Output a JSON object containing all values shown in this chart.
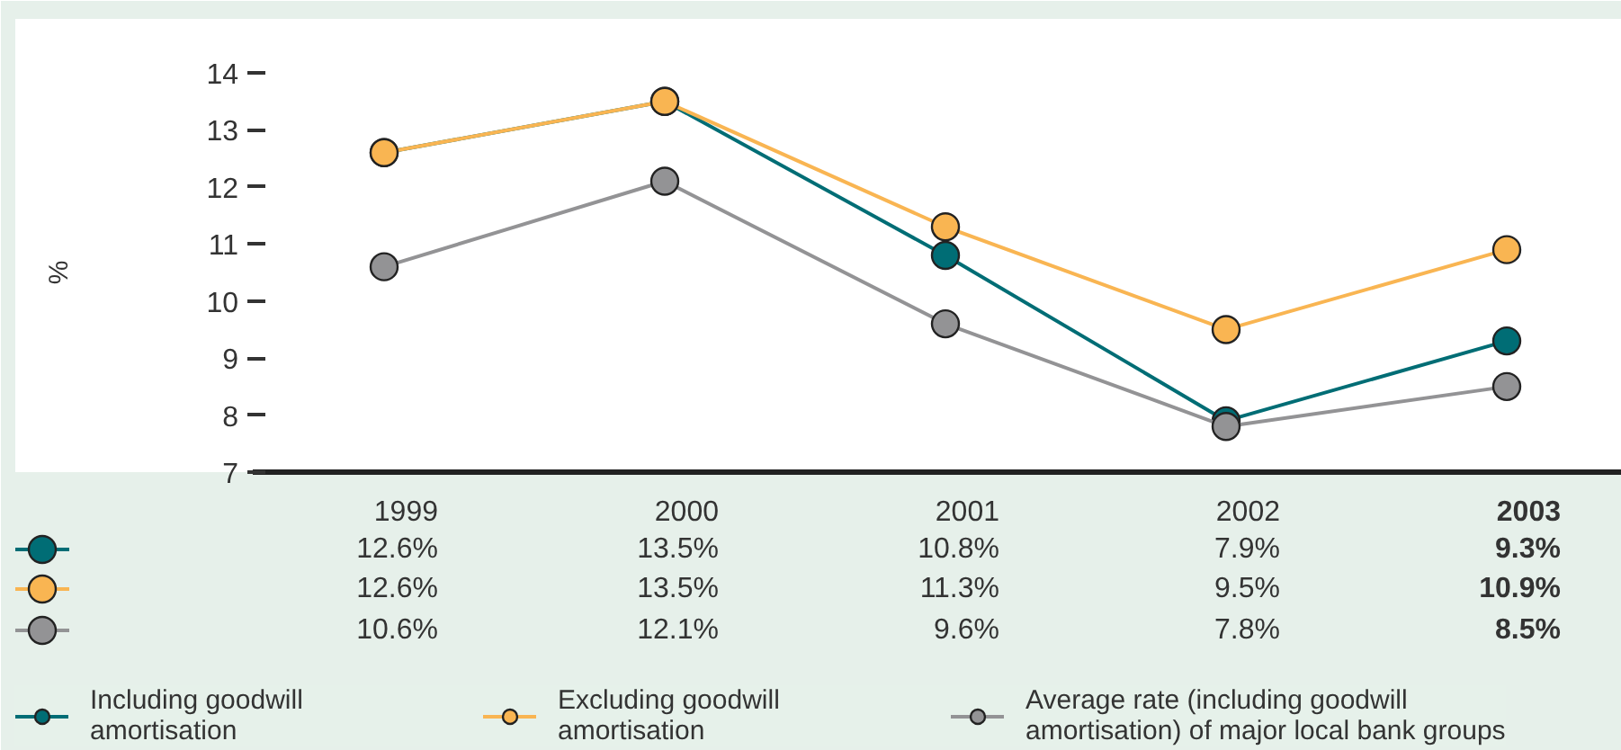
{
  "chart_data": {
    "type": "line",
    "ylabel": "%",
    "categories": [
      "1999",
      "2000",
      "2001",
      "2002",
      "2003"
    ],
    "series": [
      {
        "name": "Including goodwill\namortisation",
        "color": "#006d75",
        "values": [
          12.6,
          13.5,
          10.8,
          7.9,
          9.3
        ],
        "value_labels": [
          "12.6%",
          "13.5%",
          "10.8%",
          "7.9%",
          "9.3%"
        ]
      },
      {
        "name": "Excluding goodwill\namortisation",
        "color": "#f9b552",
        "values": [
          12.6,
          13.5,
          11.3,
          9.5,
          10.9
        ],
        "value_labels": [
          "12.6%",
          "13.5%",
          "11.3%",
          "9.5%",
          "10.9%"
        ]
      },
      {
        "name": "Average rate (including goodwill\namortisation) of major local bank groups",
        "color": "#939395",
        "values": [
          10.6,
          12.1,
          9.6,
          7.8,
          8.5
        ],
        "value_labels": [
          "10.6%",
          "12.1%",
          "9.6%",
          "7.8%",
          "8.5%"
        ]
      }
    ],
    "ylim": [
      7,
      14
    ],
    "yticks": [
      7,
      8,
      9,
      10,
      11,
      12,
      13,
      14
    ],
    "grid": false,
    "legend": "bottom",
    "marker": "circle",
    "line_style": "solid"
  }
}
